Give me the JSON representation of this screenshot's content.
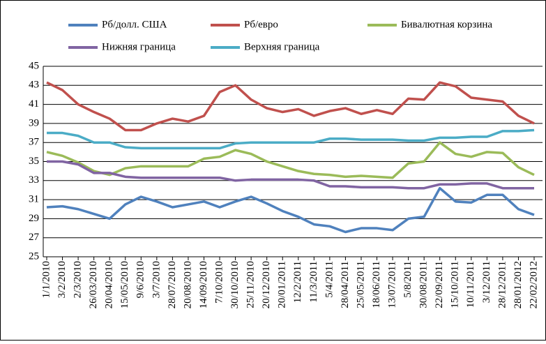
{
  "chart_data": {
    "type": "line",
    "categories": [
      "1/1/2010",
      "3/2/2010",
      "2/3/2010",
      "26/03/2010",
      "20/04/2010",
      "15/05/2010",
      "9/6/2010",
      "3/7/2010",
      "28/07/2010",
      "20/08/2010",
      "14/09/2010",
      "7/10/2010",
      "30/10/2010",
      "25/11/2010",
      "20/12/2010",
      "20/01/2011",
      "12/2/2011",
      "11/3/2011",
      "5/4/2011",
      "28/04/2011",
      "25/05/2011",
      "18/06/2011",
      "13/07/2011",
      "5/8/2011",
      "30/08/2011",
      "22/09/2011",
      "15/10/2011",
      "10/11/2011",
      "3/12/2011",
      "28/12/2011",
      "28/01/2012",
      "22/02/2012"
    ],
    "series": [
      {
        "name": "Рб/долл. США",
        "color": "#4f81bd",
        "values": [
          30.2,
          30.3,
          30.0,
          29.5,
          29.0,
          30.5,
          31.3,
          30.8,
          30.2,
          30.5,
          30.8,
          30.2,
          30.8,
          31.3,
          30.6,
          29.8,
          29.2,
          28.4,
          28.2,
          27.6,
          28.0,
          28.0,
          27.8,
          29.0,
          29.2,
          32.2,
          30.8,
          30.7,
          31.5,
          31.5,
          30.0,
          29.4
        ]
      },
      {
        "name": "Рб/евро",
        "color": "#c0504d",
        "values": [
          43.3,
          42.5,
          41.0,
          40.2,
          39.5,
          38.3,
          38.3,
          39.0,
          39.5,
          39.2,
          39.8,
          42.3,
          43.0,
          41.5,
          40.6,
          40.2,
          40.5,
          39.8,
          40.3,
          40.6,
          40.0,
          40.4,
          40.0,
          41.6,
          41.5,
          43.3,
          42.9,
          41.7,
          41.5,
          41.3,
          39.8,
          39.0
        ]
      },
      {
        "name": "Бивалютная корзина",
        "color": "#9bbb59",
        "values": [
          36.0,
          35.6,
          34.9,
          34.0,
          33.6,
          34.3,
          34.5,
          34.5,
          34.5,
          34.5,
          35.3,
          35.5,
          36.2,
          35.8,
          35.0,
          34.5,
          34.0,
          33.7,
          33.6,
          33.4,
          33.5,
          33.4,
          33.3,
          34.8,
          35.0,
          37.0,
          35.8,
          35.5,
          36.0,
          35.9,
          34.4,
          33.6
        ]
      },
      {
        "name": "Нижняя граница",
        "color": "#8064a2",
        "values": [
          35.0,
          35.0,
          34.7,
          33.8,
          33.8,
          33.4,
          33.3,
          33.3,
          33.3,
          33.3,
          33.3,
          33.3,
          33.0,
          33.1,
          33.1,
          33.1,
          33.1,
          33.0,
          32.4,
          32.4,
          32.3,
          32.3,
          32.3,
          32.2,
          32.2,
          32.6,
          32.6,
          32.7,
          32.7,
          32.2,
          32.2,
          32.2
        ]
      },
      {
        "name": "Верхняя граница",
        "color": "#4bacc6",
        "values": [
          38.0,
          38.0,
          37.7,
          37.0,
          37.0,
          36.5,
          36.4,
          36.4,
          36.4,
          36.4,
          36.4,
          36.4,
          36.9,
          37.0,
          37.0,
          37.0,
          37.0,
          37.0,
          37.4,
          37.4,
          37.3,
          37.3,
          37.3,
          37.2,
          37.2,
          37.5,
          37.5,
          37.6,
          37.6,
          38.2,
          38.2,
          38.3
        ]
      }
    ],
    "ylim": [
      25,
      45
    ],
    "yticks": [
      25,
      27,
      29,
      31,
      33,
      35,
      37,
      39,
      41,
      43,
      45
    ],
    "grid": true
  }
}
